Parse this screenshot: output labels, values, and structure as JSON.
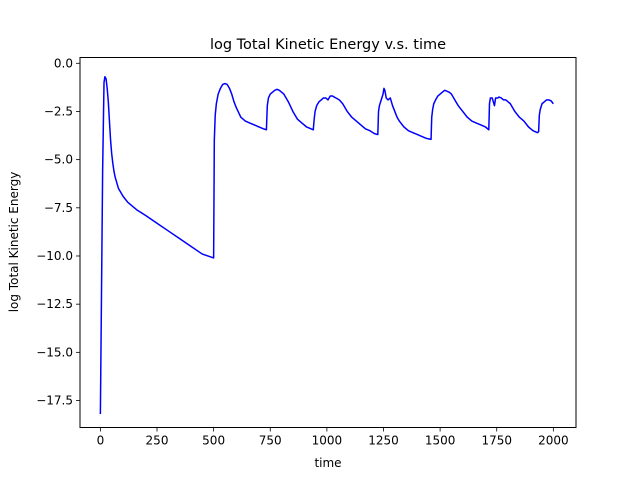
{
  "chart_data": {
    "type": "line",
    "title": "log Total Kinetic Energy v.s. time",
    "xlabel": "time",
    "ylabel": "log Total Kinetic Energy",
    "xlim": [
      -90,
      2100
    ],
    "ylim": [
      -18.9,
      0.3
    ],
    "xticks": [
      0,
      250,
      500,
      750,
      1000,
      1250,
      1500,
      1750,
      2000
    ],
    "xtick_labels": [
      "0",
      "250",
      "500",
      "750",
      "1000",
      "1250",
      "1500",
      "1750",
      "2000"
    ],
    "yticks": [
      0.0,
      -2.5,
      -5.0,
      -7.5,
      -10.0,
      -12.5,
      -15.0,
      -17.5
    ],
    "ytick_labels": [
      "0.0",
      "−2.5",
      "−5.0",
      "−7.5",
      "−10.0",
      "−12.5",
      "−15.0",
      "−17.5"
    ],
    "grid": false,
    "series": [
      {
        "color": "#0000ff",
        "x": [
          0,
          10,
          16,
          20,
          25,
          30,
          35,
          40,
          45,
          50,
          55,
          60,
          65,
          70,
          75,
          80,
          90,
          100,
          120,
          140,
          160,
          200,
          250,
          300,
          350,
          400,
          450,
          500,
          503,
          507,
          512,
          520,
          530,
          540,
          550,
          560,
          570,
          580,
          590,
          600,
          620,
          640,
          660,
          680,
          700,
          720,
          733,
          737,
          742,
          750,
          760,
          770,
          780,
          790,
          800,
          810,
          830,
          850,
          870,
          890,
          910,
          930,
          940,
          944,
          948,
          955,
          965,
          975,
          985,
          995,
          1005,
          1015,
          1025,
          1040,
          1055,
          1070,
          1090,
          1110,
          1130,
          1150,
          1170,
          1190,
          1210,
          1225,
          1228,
          1232,
          1240,
          1248,
          1252,
          1256,
          1262,
          1270,
          1280,
          1290,
          1300,
          1310,
          1320,
          1340,
          1360,
          1380,
          1400,
          1420,
          1440,
          1460,
          1463,
          1467,
          1472,
          1480,
          1490,
          1500,
          1510,
          1520,
          1530,
          1540,
          1550,
          1560,
          1570,
          1580,
          1600,
          1620,
          1640,
          1660,
          1680,
          1700,
          1715,
          1718,
          1722,
          1730,
          1740,
          1745,
          1750,
          1755,
          1760,
          1770,
          1780,
          1790,
          1800,
          1810,
          1830,
          1850,
          1870,
          1890,
          1910,
          1930,
          1935,
          1938,
          1942,
          1950,
          1960,
          1970,
          1980,
          1990,
          2000
        ],
        "y": [
          -18.2,
          -5.5,
          -1.0,
          -0.7,
          -0.8,
          -1.3,
          -2.0,
          -3.0,
          -4.0,
          -4.7,
          -5.2,
          -5.6,
          -5.9,
          -6.1,
          -6.3,
          -6.5,
          -6.7,
          -6.9,
          -7.2,
          -7.4,
          -7.6,
          -7.9,
          -8.3,
          -8.7,
          -9.1,
          -9.5,
          -9.9,
          -10.1,
          -4.0,
          -2.7,
          -2.1,
          -1.6,
          -1.3,
          -1.1,
          -1.05,
          -1.1,
          -1.3,
          -1.6,
          -2.0,
          -2.3,
          -2.8,
          -3.0,
          -3.1,
          -3.2,
          -3.3,
          -3.4,
          -3.45,
          -2.2,
          -1.8,
          -1.6,
          -1.5,
          -1.4,
          -1.35,
          -1.4,
          -1.5,
          -1.6,
          -2.0,
          -2.5,
          -2.9,
          -3.1,
          -3.3,
          -3.4,
          -3.45,
          -2.9,
          -2.5,
          -2.2,
          -2.0,
          -1.9,
          -1.8,
          -1.8,
          -1.9,
          -1.7,
          -1.7,
          -1.8,
          -1.9,
          -2.1,
          -2.5,
          -2.8,
          -3.0,
          -3.2,
          -3.4,
          -3.5,
          -3.65,
          -3.7,
          -2.5,
          -2.2,
          -1.9,
          -1.6,
          -1.3,
          -1.4,
          -1.8,
          -1.9,
          -1.8,
          -2.2,
          -2.5,
          -2.8,
          -3.0,
          -3.3,
          -3.5,
          -3.6,
          -3.7,
          -3.8,
          -3.9,
          -3.95,
          -2.8,
          -2.4,
          -2.1,
          -1.9,
          -1.7,
          -1.6,
          -1.5,
          -1.4,
          -1.45,
          -1.5,
          -1.6,
          -1.8,
          -2.0,
          -2.2,
          -2.5,
          -2.8,
          -3.0,
          -3.1,
          -3.2,
          -3.3,
          -3.45,
          -2.1,
          -1.8,
          -1.8,
          -2.2,
          -1.8,
          -1.8,
          -1.8,
          -1.75,
          -1.8,
          -1.9,
          -1.9,
          -2.0,
          -2.1,
          -2.5,
          -2.8,
          -3.0,
          -3.3,
          -3.5,
          -3.6,
          -3.55,
          -2.7,
          -2.4,
          -2.1,
          -2.0,
          -1.9,
          -1.9,
          -1.95,
          -2.1
        ]
      }
    ]
  }
}
